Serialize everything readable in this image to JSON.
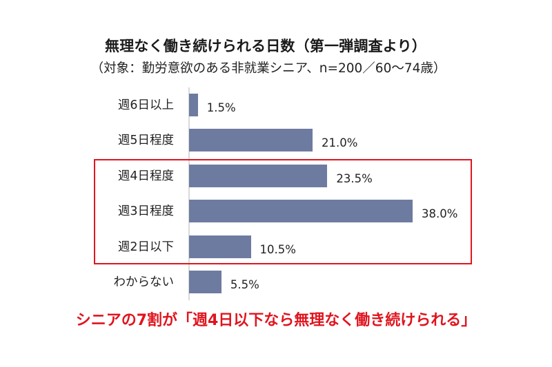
{
  "header": {
    "title": "無理なく働き続けられる日数（第一弾調査より）",
    "subtitle": "（対象：勤労意欲のある非就業シニア、n=200／60～74歳）"
  },
  "colors": {
    "bar": "#6e7ba0",
    "highlight": "#e0141e",
    "conclusion": "#e0141e"
  },
  "conclusion": "シニアの7割が「週4日以下なら無理なく働き続けられる」",
  "chart_data": {
    "type": "bar",
    "orientation": "horizontal",
    "title": "無理なく働き続けられる日数（第一弾調査より）",
    "subtitle": "（対象：勤労意欲のある非就業シニア、n=200／60～74歳）",
    "categories": [
      "週6日以上",
      "週5日程度",
      "週4日程度",
      "週3日程度",
      "週2日以下",
      "わからない"
    ],
    "values": [
      1.5,
      21.0,
      23.5,
      38.0,
      10.5,
      5.5
    ],
    "labels": [
      "1.5%",
      "21.0%",
      "23.5%",
      "38.0%",
      "10.5%",
      "5.5%"
    ],
    "unit": "%",
    "xlabel": "",
    "ylabel": "",
    "xlim": [
      0,
      40
    ],
    "grid": false,
    "legend": null,
    "annotations": [
      {
        "type": "box",
        "categories": [
          "週4日程度",
          "週3日程度",
          "週2日以下"
        ],
        "color": "#e0141e"
      },
      {
        "type": "text",
        "text": "シニアの7割が「週4日以下なら無理なく働き続けられる」",
        "color": "#e0141e"
      }
    ]
  }
}
